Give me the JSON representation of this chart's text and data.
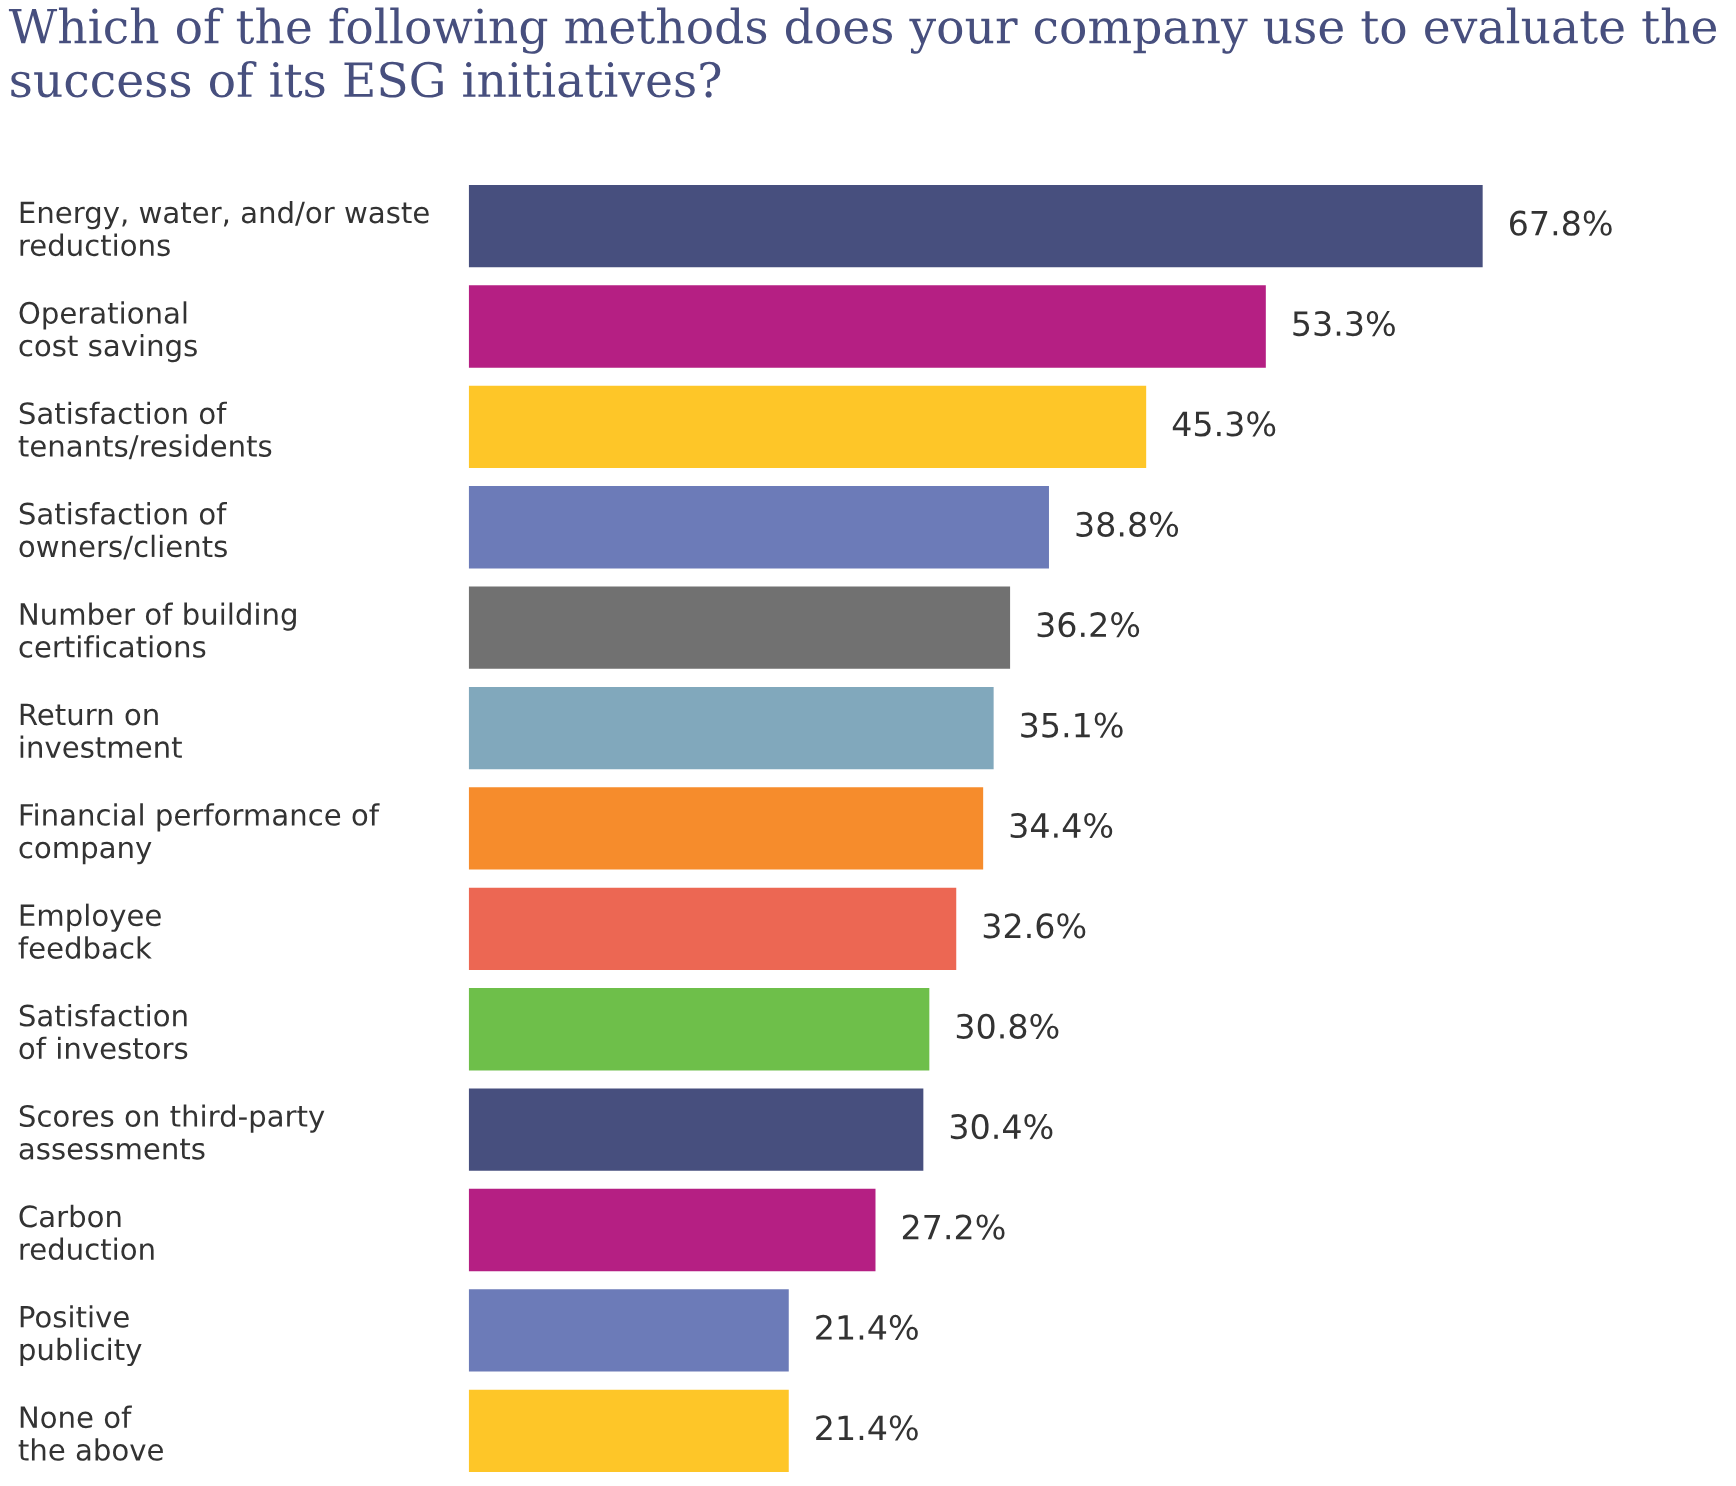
{
  "chart_data": {
    "type": "bar",
    "orientation": "horizontal",
    "title": "Which of the following methods does your company use to evaluate the success of its ESG initiatives?",
    "categories": [
      "Energy, water, and/or waste\nreductions",
      "Operational\ncost savings",
      "Satisfaction of\ntenants/residents",
      "Satisfaction of\nowners/clients",
      "Number of building\ncertifications",
      "Return on\ninvestment",
      "Financial performance of\ncompany",
      "Employee\nfeedback",
      "Satisfaction\nof investors",
      "Scores on third-party\nassessments",
      "Carbon\nreduction",
      "Positive\npublicity",
      "None of\nthe above"
    ],
    "values": [
      67.8,
      53.3,
      45.3,
      38.8,
      36.2,
      35.1,
      34.4,
      32.6,
      30.8,
      30.4,
      27.2,
      21.4,
      21.4
    ],
    "value_labels": [
      "67.8%",
      "53.3%",
      "45.3%",
      "38.8%",
      "36.2%",
      "35.1%",
      "34.4%",
      "32.6%",
      "30.8%",
      "30.4%",
      "27.2%",
      "21.4%",
      "21.4%"
    ],
    "colors": [
      "#474f7e",
      "#b51f83",
      "#fec628",
      "#6c7bb8",
      "#717171",
      "#81a8bc",
      "#f68c2c",
      "#ec6753",
      "#6ebf4a",
      "#474f7e",
      "#b51f83",
      "#6c7bb8",
      "#fec628"
    ]
  }
}
